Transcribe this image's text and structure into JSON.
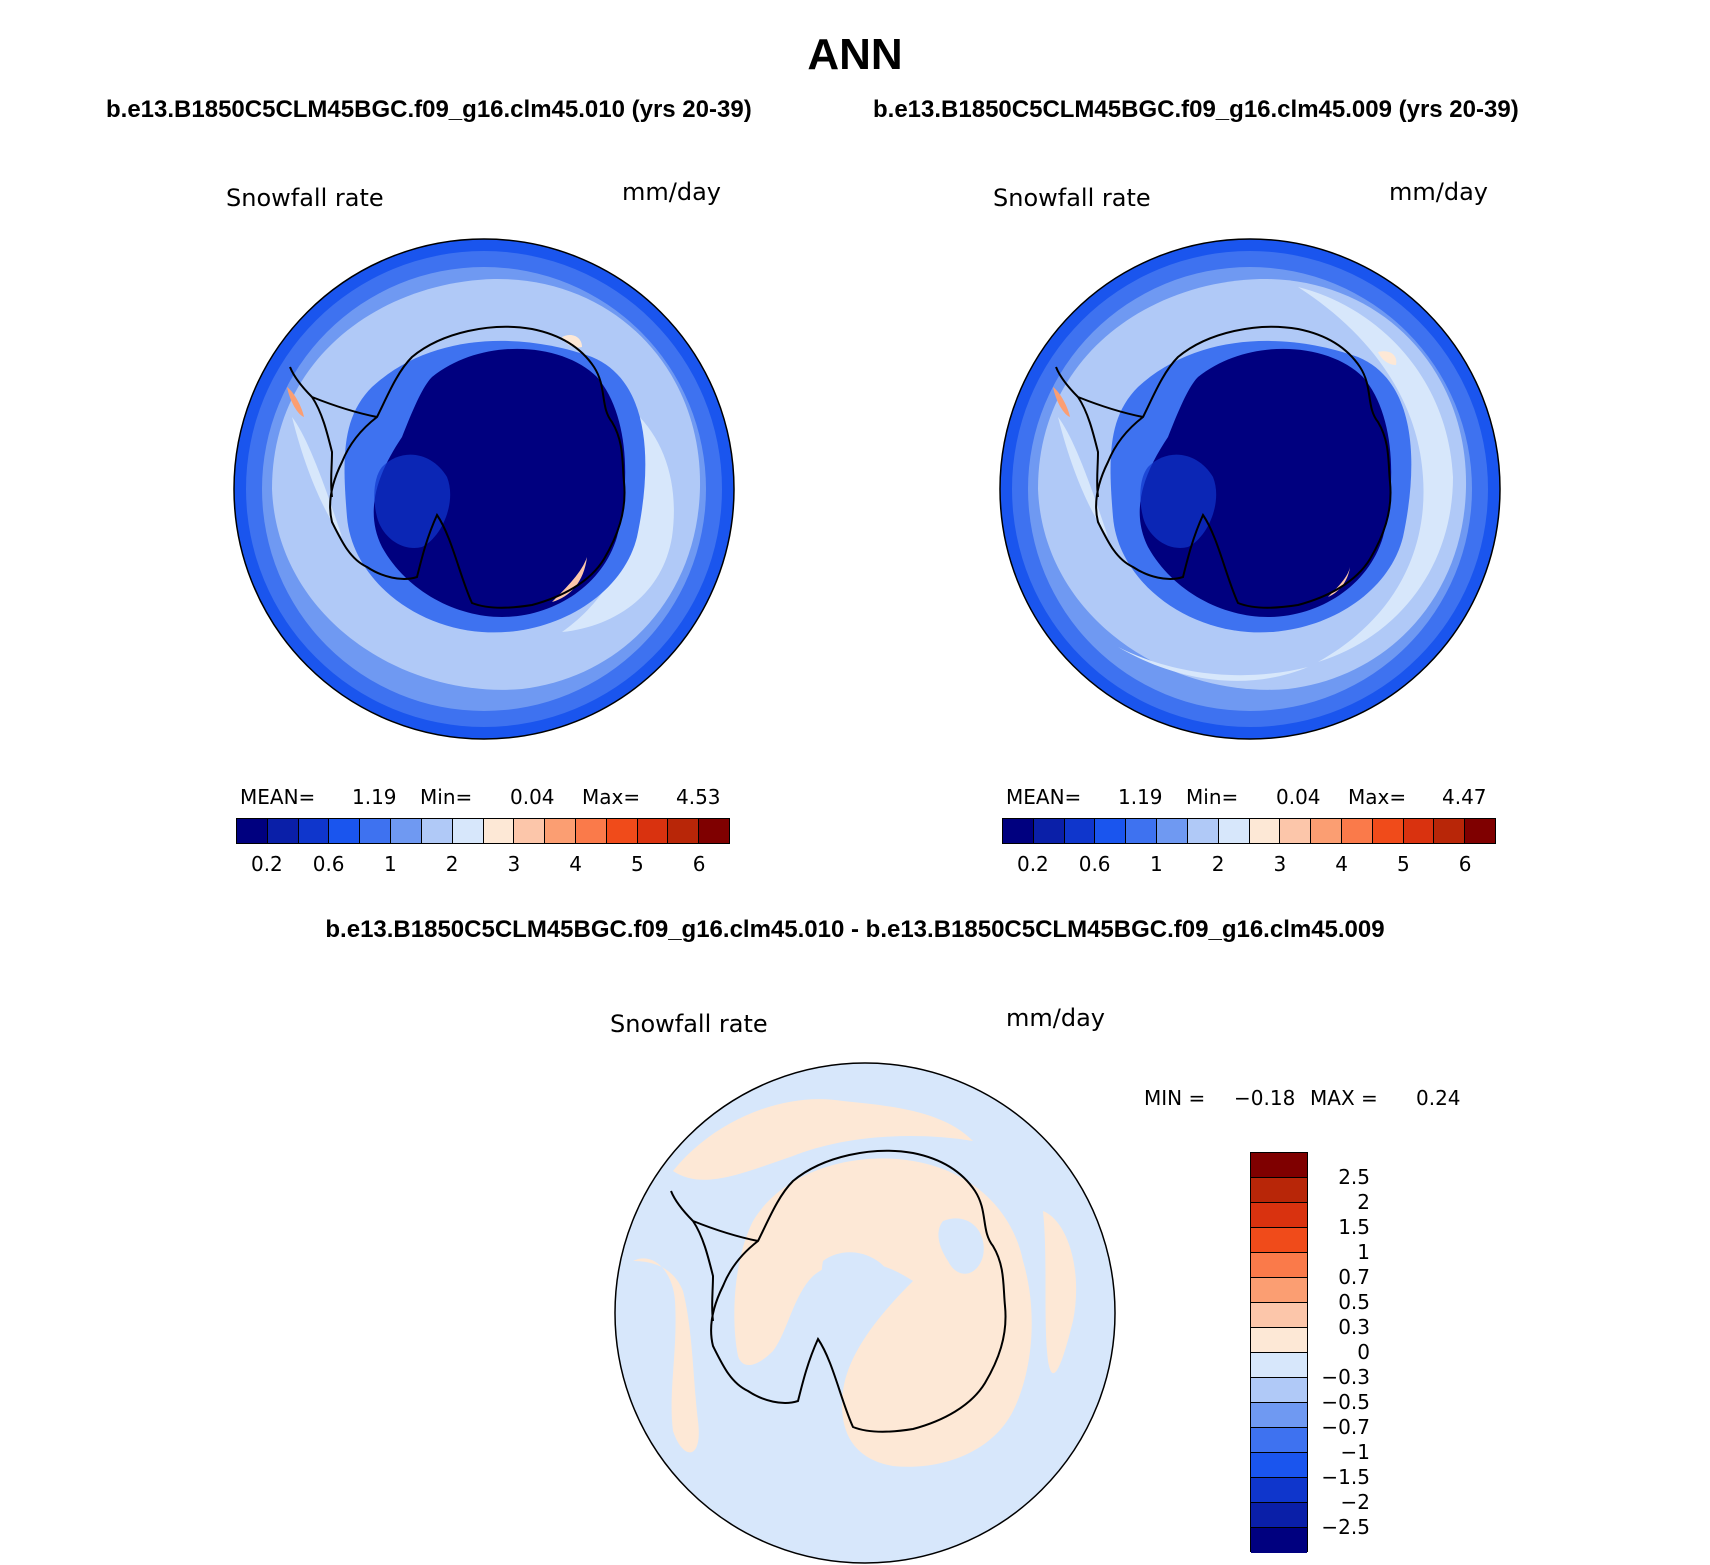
{
  "header": {
    "season": "ANN",
    "case1_title": "b.e13.B1850C5CLM45BGC.f09_g16.clm45.010 (yrs 20-39)",
    "case2_title": "b.e13.B1850C5CLM45BGC.f09_g16.clm45.009 (yrs 20-39)",
    "diff_title": "b.e13.B1850C5CLM45BGC.f09_g16.clm45.010 - b.e13.B1850C5CLM45BGC.f09_g16.clm45.009"
  },
  "panels": [
    {
      "variable": "Snowfall rate",
      "units": "mm/day",
      "mean_label": "MEAN=",
      "mean": "1.19",
      "min_label": "Min=",
      "min": "0.04",
      "max_label": "Max=",
      "max": "4.53"
    },
    {
      "variable": "Snowfall rate",
      "units": "mm/day",
      "mean_label": "MEAN=",
      "mean": "1.19",
      "min_label": "Min=",
      "min": "0.04",
      "max_label": "Max=",
      "max": "4.47"
    }
  ],
  "diff_panel": {
    "variable": "Snowfall rate",
    "units": "mm/day",
    "min_label": "MIN =",
    "min": "−0.18",
    "max_label": "MAX =",
    "max": "0.24"
  },
  "colorbar": {
    "colors": [
      "#00007f",
      "#0a1fa8",
      "#0f36cc",
      "#1a55ee",
      "#3e72f0",
      "#6f99f2",
      "#b0c9f7",
      "#d7e7fb",
      "#fde8d6",
      "#fcc6aa",
      "#fb9e72",
      "#fa7a4a",
      "#f04b1a",
      "#d9320f",
      "#b82608",
      "#7f0000"
    ],
    "tick_labels": [
      "0.2",
      "0.6",
      "1",
      "2",
      "3",
      "4",
      "5",
      "6"
    ],
    "tick_boxes": [
      1,
      3,
      5,
      7,
      9,
      11,
      13,
      15
    ]
  },
  "diff_colorbar": {
    "colors_top_to_bottom": [
      "#7f0000",
      "#b82608",
      "#d9320f",
      "#f04b1a",
      "#fa7a4a",
      "#fb9e72",
      "#fcc6aa",
      "#fde8d6",
      "#d7e7fb",
      "#b0c9f7",
      "#6f99f2",
      "#3e72f0",
      "#1a55ee",
      "#0f36cc",
      "#0a1fa8",
      "#00007f"
    ],
    "labels_top_to_bottom": [
      "2.5",
      "2",
      "1.5",
      "1",
      "0.7",
      "0.5",
      "0.3",
      "0",
      "−0.3",
      "−0.5",
      "−0.7",
      "−1",
      "−1.5",
      "−2",
      "−2.5"
    ]
  }
}
